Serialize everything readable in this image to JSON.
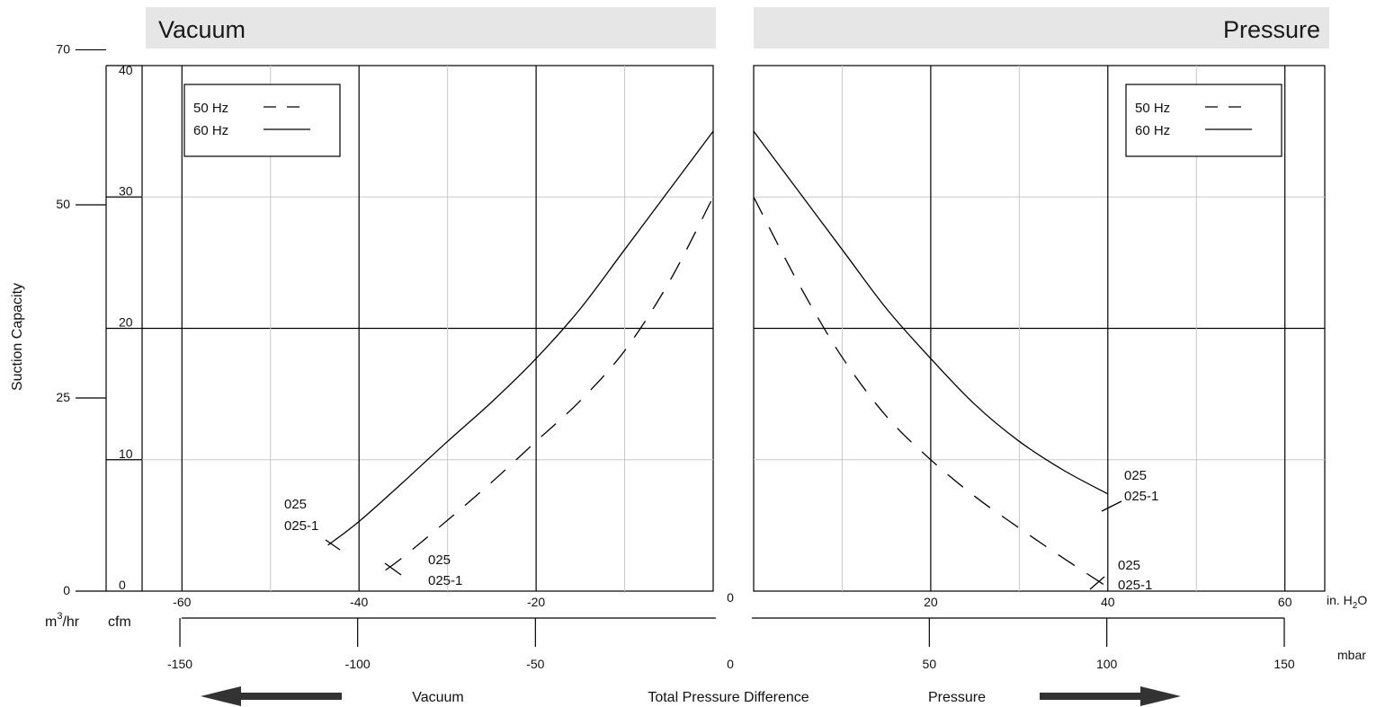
{
  "headers": {
    "left": "Vacuum",
    "right": "Pressure"
  },
  "y_axis": {
    "label": "Suction Capacity",
    "unit_outer": "m3/hr",
    "unit_outer_base": "m",
    "unit_outer_sup": "3",
    "unit_outer_rest": "/hr",
    "unit_inner": "cfm",
    "cfm_ticks": [
      "0",
      "10",
      "20",
      "30",
      "40"
    ],
    "m3hr_ticks": [
      {
        "label": "0",
        "cfm": 0
      },
      {
        "label": "25",
        "cfm": 14.7
      },
      {
        "label": "50",
        "cfm": 29.4
      },
      {
        "label": "70",
        "cfm": 41.2
      }
    ]
  },
  "x_axis": {
    "title": "Total Pressure Difference",
    "unit_inh2o": "in. H2O",
    "unit_inh2o_base": "in. H",
    "unit_inh2o_sub": "2",
    "unit_inh2o_rest": "O",
    "unit_mbar": "mbar",
    "vacuum_label": "Vacuum",
    "pressure_label": "Pressure",
    "vacuum_inh2o_ticks": [
      "-60",
      "-40",
      "-20"
    ],
    "pressure_inh2o_ticks": [
      "20",
      "40",
      "60"
    ],
    "zero_label": "0",
    "vacuum_mbar_ticks": [
      "-150",
      "-100",
      "-50"
    ],
    "pressure_mbar_ticks": [
      "50",
      "100",
      "150"
    ]
  },
  "legend": {
    "hz50": "50 Hz",
    "hz60": "60 Hz"
  },
  "annotations": {
    "model_a": "025",
    "model_b": "025-1"
  },
  "colors": {
    "header_bg": "#e6e6e6",
    "grid_major": "#000000",
    "grid_minor": "#c8c8c8",
    "line": "#000000",
    "arrow": "#333333"
  },
  "chart_data": [
    {
      "type": "line",
      "panel": "vacuum",
      "x_unit": "in. H2O",
      "y_unit": "cfm",
      "xlim": [
        -65,
        0
      ],
      "ylim": [
        0,
        40
      ],
      "grid": true,
      "legend_position": "top-left",
      "series": [
        {
          "name": "60 Hz",
          "style": "solid",
          "x": [
            -43.5,
            -40,
            -35,
            -30,
            -25,
            -20,
            -15,
            -10,
            -5,
            0
          ],
          "y": [
            3.5,
            5.3,
            8.3,
            11.4,
            14.4,
            17.7,
            21.5,
            26.0,
            30.5,
            35.0
          ]
        },
        {
          "name": "50 Hz",
          "style": "dashed",
          "x": [
            -37,
            -35,
            -30,
            -25,
            -20,
            -15,
            -10,
            -5,
            0
          ],
          "y": [
            1.6,
            2.6,
            5.4,
            8.3,
            11.4,
            14.5,
            18.3,
            23.5,
            30.0
          ]
        }
      ]
    },
    {
      "type": "line",
      "panel": "pressure",
      "x_unit": "in. H2O",
      "y_unit": "cfm",
      "xlim": [
        0,
        65
      ],
      "ylim": [
        0,
        40
      ],
      "grid": true,
      "legend_position": "top-right",
      "series": [
        {
          "name": "60 Hz",
          "style": "solid",
          "x": [
            0,
            5,
            10,
            15,
            20,
            25,
            30,
            35,
            40
          ],
          "y": [
            35.0,
            30.5,
            26.0,
            21.5,
            17.7,
            14.2,
            11.4,
            9.2,
            7.4
          ]
        },
        {
          "name": "50 Hz",
          "style": "dashed",
          "x": [
            0,
            5,
            10,
            15,
            20,
            25,
            30,
            35,
            40
          ],
          "y": [
            30.0,
            23.5,
            17.8,
            13.3,
            10.0,
            7.2,
            4.8,
            2.5,
            0.3
          ]
        }
      ]
    }
  ]
}
